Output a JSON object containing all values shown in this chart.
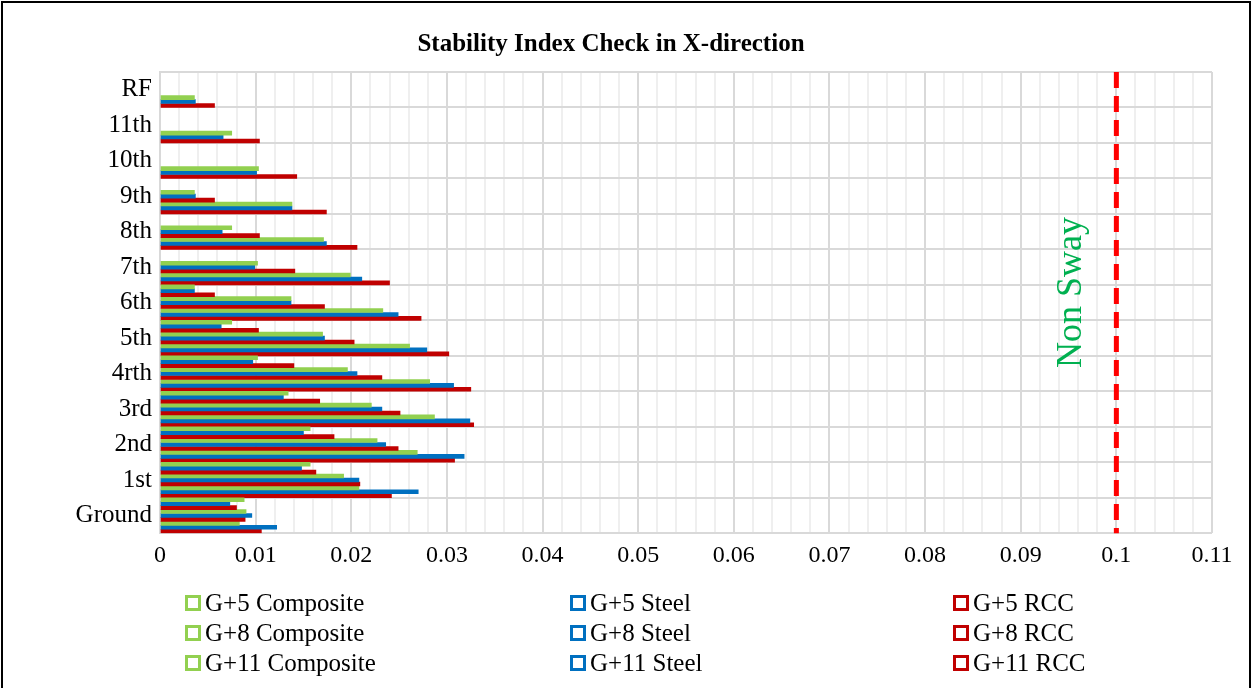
{
  "chart_data": {
    "type": "bar",
    "orientation": "horizontal",
    "title": "Stability Index Check in X-direction",
    "categories": [
      "RF",
      "11th",
      "10th",
      "9th",
      "8th",
      "7th",
      "6th",
      "5th",
      "4rth",
      "3rd",
      "2nd",
      "1st",
      "Ground"
    ],
    "series": [
      {
        "name": "G+5 Composite",
        "color": "#92d050",
        "values": [
          null,
          null,
          null,
          null,
          null,
          null,
          0.0036,
          0.0075,
          0.0102,
          0.0134,
          0.0157,
          0.0157,
          0.0088
        ]
      },
      {
        "name": "G+5 Steel",
        "color": "#0070c0",
        "values": [
          null,
          null,
          null,
          null,
          null,
          null,
          0.0036,
          0.0064,
          0.0097,
          0.0129,
          0.015,
          0.0148,
          0.0073
        ]
      },
      {
        "name": "G+5 RCC",
        "color": "#c00000",
        "values": [
          null,
          null,
          null,
          null,
          null,
          null,
          0.0057,
          0.0103,
          0.014,
          0.0167,
          0.0182,
          0.0163,
          0.008
        ]
      },
      {
        "name": "G+8 Composite",
        "color": "#92d050",
        "values": [
          null,
          null,
          null,
          0.0036,
          0.0075,
          0.0102,
          0.0137,
          0.017,
          0.0196,
          0.0221,
          0.0227,
          0.0192,
          0.009
        ]
      },
      {
        "name": "G+8 Steel",
        "color": "#0070c0",
        "values": [
          null,
          null,
          null,
          0.0037,
          0.0065,
          0.0099,
          0.0137,
          0.0172,
          0.0206,
          0.0232,
          0.0236,
          0.0208,
          0.0096
        ]
      },
      {
        "name": "G+8 RCC",
        "color": "#c00000",
        "values": [
          null,
          null,
          null,
          0.0057,
          0.0104,
          0.0141,
          0.0172,
          0.0203,
          0.0232,
          0.0251,
          0.0249,
          0.0209,
          0.0089
        ]
      },
      {
        "name": "G+11 Composite",
        "color": "#92d050",
        "values": [
          0.0036,
          0.0075,
          0.0103,
          0.0138,
          0.0171,
          0.0199,
          0.0233,
          0.0261,
          0.0282,
          0.0287,
          0.0269,
          0.0208,
          0.0083
        ]
      },
      {
        "name": "G+11 Steel",
        "color": "#0070c0",
        "values": [
          0.0037,
          0.0066,
          0.0101,
          0.0138,
          0.0174,
          0.0211,
          0.0249,
          0.0279,
          0.0307,
          0.0324,
          0.0318,
          0.027,
          0.0122
        ]
      },
      {
        "name": "G+11 RCC",
        "color": "#c00000",
        "values": [
          0.0057,
          0.0104,
          0.0143,
          0.0174,
          0.0206,
          0.024,
          0.0273,
          0.0302,
          0.0325,
          0.0328,
          0.0308,
          0.0242,
          0.0106
        ]
      }
    ],
    "xlim": [
      0,
      0.11
    ],
    "xticks": [
      0,
      {
        "value": 0.002,
        "label": null
      },
      {
        "value": 0.004,
        "label": null
      },
      {
        "value": 0.006,
        "label": null
      },
      {
        "value": 0.008,
        "label": null
      },
      0.01,
      {
        "value": 0.012,
        "label": null
      },
      {
        "value": 0.014,
        "label": null
      },
      {
        "value": 0.016,
        "label": null
      },
      {
        "value": 0.018,
        "label": null
      },
      0.02,
      {
        "value": 0.022,
        "label": null
      },
      {
        "value": 0.024,
        "label": null
      },
      {
        "value": 0.026,
        "label": null
      },
      {
        "value": 0.028,
        "label": null
      },
      0.03,
      {
        "value": 0.032,
        "label": null
      },
      {
        "value": 0.034,
        "label": null
      },
      {
        "value": 0.036,
        "label": null
      },
      {
        "value": 0.038,
        "label": null
      },
      0.04,
      {
        "value": 0.042,
        "label": null
      },
      {
        "value": 0.044,
        "label": null
      },
      {
        "value": 0.046,
        "label": null
      },
      {
        "value": 0.048,
        "label": null
      },
      0.05,
      {
        "value": 0.052,
        "label": null
      },
      {
        "value": 0.054,
        "label": null
      },
      {
        "value": 0.056,
        "label": null
      },
      {
        "value": 0.058,
        "label": null
      },
      0.06,
      {
        "value": 0.062,
        "label": null
      },
      {
        "value": 0.064,
        "label": null
      },
      {
        "value": 0.066,
        "label": null
      },
      {
        "value": 0.068,
        "label": null
      },
      0.07,
      {
        "value": 0.072,
        "label": null
      },
      {
        "value": 0.074,
        "label": null
      },
      {
        "value": 0.076,
        "label": null
      },
      {
        "value": 0.078,
        "label": null
      },
      0.08,
      {
        "value": 0.082,
        "label": null
      },
      {
        "value": 0.084,
        "label": null
      },
      {
        "value": 0.086,
        "label": null
      },
      {
        "value": 0.088,
        "label": null
      },
      0.09,
      {
        "value": 0.092,
        "label": null
      },
      {
        "value": 0.094,
        "label": null
      },
      {
        "value": 0.096,
        "label": null
      },
      {
        "value": 0.098,
        "label": null
      },
      0.1,
      {
        "value": 0.102,
        "label": null
      },
      {
        "value": 0.104,
        "label": null
      },
      {
        "value": 0.106,
        "label": null
      },
      {
        "value": 0.108,
        "label": null
      },
      0.11
    ],
    "ref_lines": [
      {
        "axis": "x",
        "value": 0.1,
        "label": "Non Sway",
        "color": "#ff0000",
        "line_style": "dashed"
      }
    ],
    "grid": true,
    "legend": "bottom"
  }
}
